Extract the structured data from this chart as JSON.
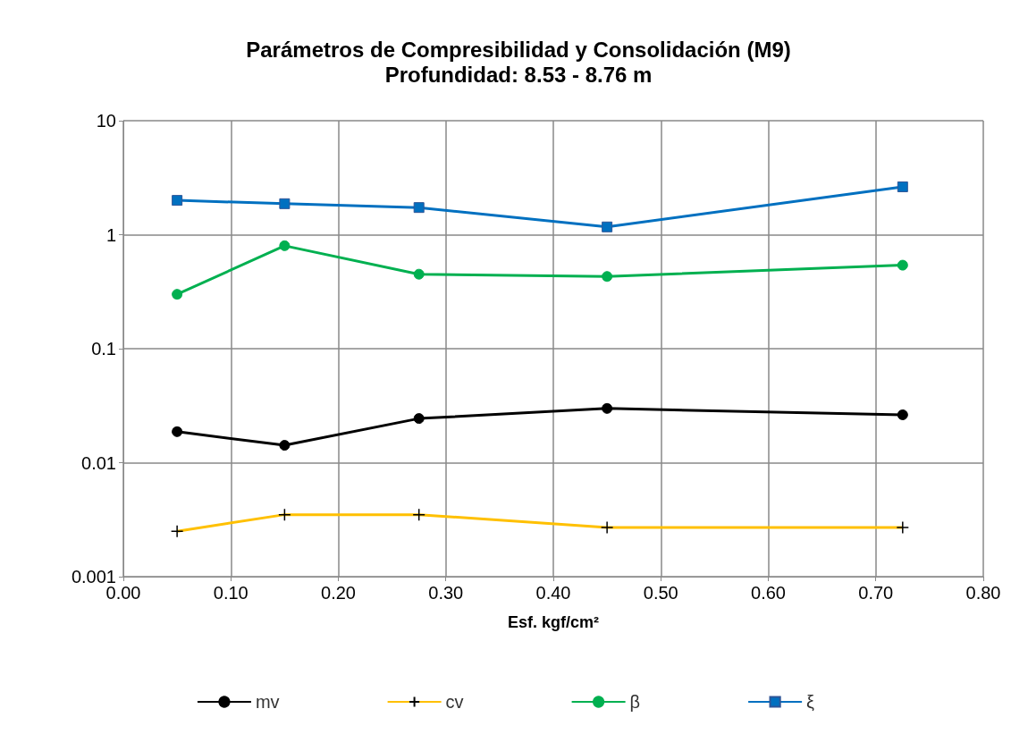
{
  "chart_data": {
    "type": "line",
    "title": "Parámetros de Compresibilidad y Consolidación (M9)",
    "subtitle": "Profundidad: 8.53 - 8.76 m",
    "xlabel": "Esf. kgf/cm²",
    "x": [
      0.05,
      0.15,
      0.275,
      0.45,
      0.725
    ],
    "series": [
      {
        "name": "mv",
        "color": "#000000",
        "marker": "circle",
        "values": [
          0.0187,
          0.0142,
          0.0244,
          0.0299,
          0.0263
        ]
      },
      {
        "name": "cv",
        "color": "#ffc000",
        "marker": "cross",
        "values": [
          0.0025,
          0.0035,
          0.0035,
          0.0027,
          0.0027
        ]
      },
      {
        "name": "β",
        "color": "#00b050",
        "marker": "circle",
        "values": [
          0.3,
          0.8,
          0.45,
          0.43,
          0.54
        ]
      },
      {
        "name": "ξ",
        "color": "#0070c0",
        "marker": "square",
        "values": [
          2.0,
          1.87,
          1.73,
          1.17,
          2.63
        ]
      }
    ],
    "xlim": [
      0,
      0.8
    ],
    "xticks": [
      {
        "value": 0,
        "label": "0.00"
      },
      {
        "value": 0.1,
        "label": "0.10"
      },
      {
        "value": 0.2,
        "label": "0.20"
      },
      {
        "value": 0.3,
        "label": "0.30"
      },
      {
        "value": 0.4,
        "label": "0.40"
      },
      {
        "value": 0.5,
        "label": "0.50"
      },
      {
        "value": 0.6,
        "label": "0.60"
      },
      {
        "value": 0.7,
        "label": "0.70"
      },
      {
        "value": 0.8,
        "label": "0.80"
      }
    ],
    "ylim": [
      0.001,
      10
    ],
    "yticks": [
      0.001,
      0.01,
      0.1,
      1,
      10
    ],
    "log": "y",
    "grid": true,
    "legend": "bottom"
  }
}
